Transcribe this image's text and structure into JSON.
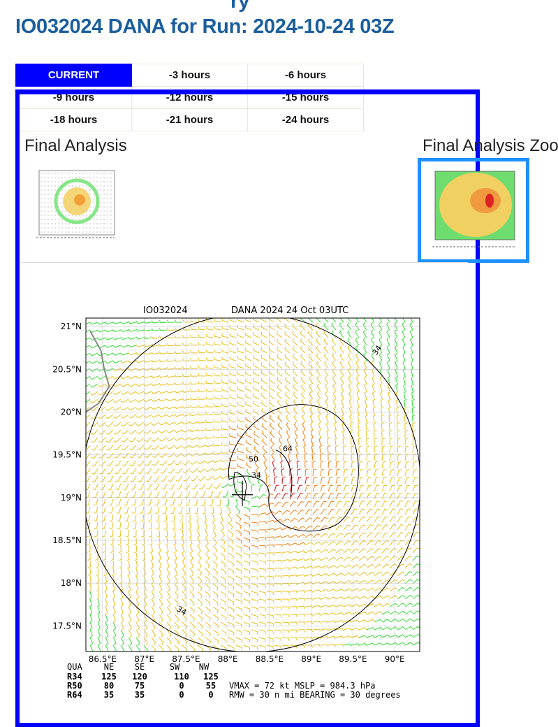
{
  "header": {
    "title": "IO032024 DANA for Run: 2024-10-24 03Z",
    "partial_top": "ry"
  },
  "nav": {
    "rows": [
      [
        "CURRENT",
        "-3 hours",
        "-6 hours"
      ],
      [
        "-9 hours",
        "-12 hours",
        "-15 hours"
      ],
      [
        "-18 hours",
        "-21 hours",
        "-24 hours"
      ]
    ],
    "active": "CURRENT"
  },
  "thumbs": {
    "analysis_label": "Final Analysis",
    "zoom_label": "Final Analysis Zoo"
  },
  "chart_data": {
    "type": "wind-barb map",
    "title_left": "IO032024",
    "title_right": "DANA 2024 24 Oct 03UTC",
    "xlim": [
      86.3,
      90.3
    ],
    "ylim": [
      17.2,
      21.1
    ],
    "xticks": [
      {
        "v": 86.5,
        "label": "86.5°E"
      },
      {
        "v": 87,
        "label": "87°E"
      },
      {
        "v": 87.5,
        "label": "87.5°E"
      },
      {
        "v": 88,
        "label": "88°E"
      },
      {
        "v": 88.5,
        "label": "88.5°E"
      },
      {
        "v": 89,
        "label": "89°E"
      },
      {
        "v": 89.5,
        "label": "89.5°E"
      },
      {
        "v": 90,
        "label": "90°E"
      }
    ],
    "yticks": [
      {
        "v": 21,
        "label": "21°N"
      },
      {
        "v": 20.5,
        "label": "20.5°N"
      },
      {
        "v": 20,
        "label": "20°N"
      },
      {
        "v": 19.5,
        "label": "19.5°N"
      },
      {
        "v": 19,
        "label": "19°N"
      },
      {
        "v": 18.5,
        "label": "18.5°N"
      },
      {
        "v": 18,
        "label": "18°N"
      },
      {
        "v": 17.5,
        "label": "17.5°N"
      }
    ],
    "center": [
      88.2,
      19.05
    ],
    "contours": [
      {
        "label": "34"
      },
      {
        "label": "50"
      },
      {
        "label": "64"
      },
      {
        "label": "34"
      },
      {
        "label": "34"
      }
    ],
    "wind_colors": {
      "lt34": "#33dd33",
      "34to50": "#e8c020",
      "50to64": "#f08010",
      "gt64": "#dd1111"
    },
    "table": {
      "headers": [
        "QUA",
        "NE",
        "SE",
        "SW",
        "NW"
      ],
      "rows": [
        [
          "R34",
          "125",
          "120",
          "110",
          "125"
        ],
        [
          "R50",
          "80",
          "75",
          "0",
          "55"
        ],
        [
          "R64",
          "35",
          "35",
          "0",
          "0"
        ]
      ],
      "vmax_line": "VMAX =  72 kt MSLP = 984.3 hPa",
      "rmw_line": "RMW =  30 n mi BEARING =  30 degrees"
    }
  }
}
